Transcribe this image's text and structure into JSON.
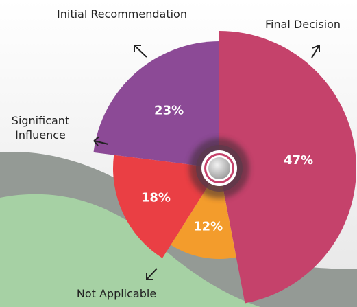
{
  "chart_data": {
    "type": "pie",
    "categories": [
      "Final Decision",
      "Not Applicable",
      "Significant Influence",
      "Initial Recommendation"
    ],
    "values": [
      47,
      12,
      18,
      23
    ],
    "value_labels": [
      "47%",
      "12%",
      "18%",
      "23%"
    ],
    "colors": [
      "#c5426b",
      "#f39c2c",
      "#ea3f44",
      "#8c4a96"
    ]
  }
}
